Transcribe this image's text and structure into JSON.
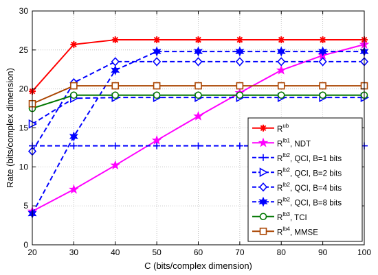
{
  "chart_data": {
    "type": "line",
    "title": "",
    "xlabel": "C (bits/complex dimension)",
    "ylabel": "Rate (bits/complex dimension)",
    "xlim": [
      20,
      100
    ],
    "ylim": [
      0,
      30
    ],
    "x_ticks": [
      20,
      30,
      40,
      50,
      60,
      70,
      80,
      90,
      100
    ],
    "y_ticks": [
      0,
      5,
      10,
      15,
      20,
      25,
      30
    ],
    "grid": true,
    "legend_position": "bottom-right",
    "x": [
      20,
      30,
      40,
      50,
      60,
      70,
      80,
      90,
      100
    ],
    "series": [
      {
        "name_main": "R",
        "name_sup": "ub",
        "name_rest": "",
        "color": "#ff0000",
        "line_style": "solid",
        "marker": "asterisk",
        "values": [
          19.7,
          25.7,
          26.3,
          26.3,
          26.3,
          26.3,
          26.3,
          26.3,
          26.3
        ]
      },
      {
        "name_main": "R",
        "name_sup": "lb1",
        "name_rest": ", NDT",
        "color": "#ff00ff",
        "line_style": "solid",
        "marker": "star",
        "values": [
          4.3,
          7.1,
          10.2,
          13.4,
          16.5,
          19.5,
          22.4,
          24.3,
          25.7
        ]
      },
      {
        "name_main": "R",
        "name_sup": "lb2",
        "name_rest": ", QCI, B=1 bits",
        "color": "#0000ff",
        "line_style": "dashed",
        "marker": "plus",
        "values": [
          12.7,
          12.7,
          12.7,
          12.7,
          12.7,
          12.7,
          12.7,
          12.7,
          12.7
        ]
      },
      {
        "name_main": "R",
        "name_sup": "lb2",
        "name_rest": ", QCI, B=2 bits",
        "color": "#0000ff",
        "line_style": "dashed",
        "marker": "triangle-right",
        "values": [
          15.5,
          18.8,
          18.9,
          18.9,
          18.9,
          18.9,
          18.9,
          18.9,
          18.9
        ]
      },
      {
        "name_main": "R",
        "name_sup": "lb2",
        "name_rest": ", QCI, B=4 bits",
        "color": "#0000ff",
        "line_style": "dashed",
        "marker": "diamond",
        "values": [
          12.0,
          20.8,
          23.5,
          23.5,
          23.5,
          23.5,
          23.5,
          23.5,
          23.5
        ]
      },
      {
        "name_main": "R",
        "name_sup": "lb2",
        "name_rest": ", QCI, B=8 bits",
        "color": "#0000ff",
        "line_style": "dashed",
        "marker": "hexagram",
        "values": [
          4.0,
          13.9,
          22.4,
          24.8,
          24.8,
          24.8,
          24.8,
          24.8,
          24.8
        ]
      },
      {
        "name_main": "R",
        "name_sup": "lb3",
        "name_rest": ", TCI",
        "color": "#007700",
        "line_style": "solid",
        "marker": "circle",
        "values": [
          17.5,
          19.2,
          19.2,
          19.2,
          19.2,
          19.2,
          19.2,
          19.2,
          19.2
        ]
      },
      {
        "name_main": "R",
        "name_sup": "lb4",
        "name_rest": ", MMSE",
        "color": "#aa4400",
        "line_style": "solid",
        "marker": "square",
        "values": [
          18.1,
          20.4,
          20.4,
          20.4,
          20.4,
          20.4,
          20.4,
          20.4,
          20.4
        ]
      }
    ]
  }
}
